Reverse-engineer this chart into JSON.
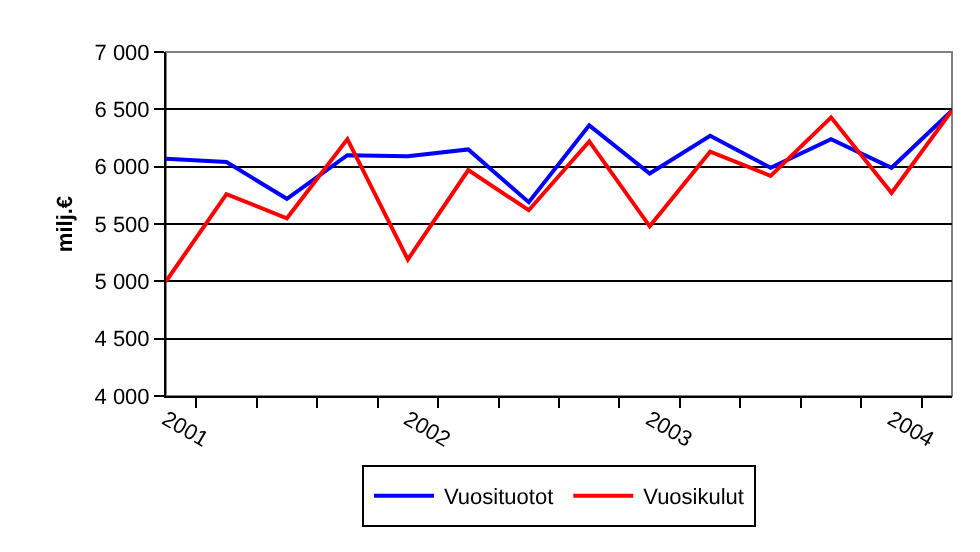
{
  "chart_data": {
    "type": "line",
    "ylabel": "milj.€",
    "categories": [
      "2001",
      null,
      null,
      null,
      "2002",
      null,
      null,
      null,
      "2003",
      null,
      null,
      null,
      "2004",
      null
    ],
    "series": [
      {
        "name": "Vuosituotot",
        "color": "#0000ff",
        "values": [
          6070,
          6040,
          5720,
          6100,
          6090,
          6150,
          5690,
          6360,
          5940,
          6270,
          5990,
          6240,
          5990,
          6490
        ]
      },
      {
        "name": "Vuosikulut",
        "color": "#ff0000",
        "values": [
          5000,
          5760,
          5550,
          6240,
          5190,
          5970,
          5620,
          6220,
          5480,
          6130,
          5920,
          6430,
          5770,
          6490
        ]
      }
    ],
    "ylim": [
      4000,
      7000
    ],
    "yticks": [
      {
        "value": 4000,
        "label": "4 000"
      },
      {
        "value": 4500,
        "label": "4 500"
      },
      {
        "value": 5000,
        "label": "5 000"
      },
      {
        "value": 5500,
        "label": "5 500"
      },
      {
        "value": 6000,
        "label": "6 000"
      },
      {
        "value": 6500,
        "label": "6 500"
      },
      {
        "value": 7000,
        "label": "7 000"
      }
    ],
    "grid": "y",
    "legend": "bottom",
    "marker": "none",
    "line_style": "solid"
  }
}
